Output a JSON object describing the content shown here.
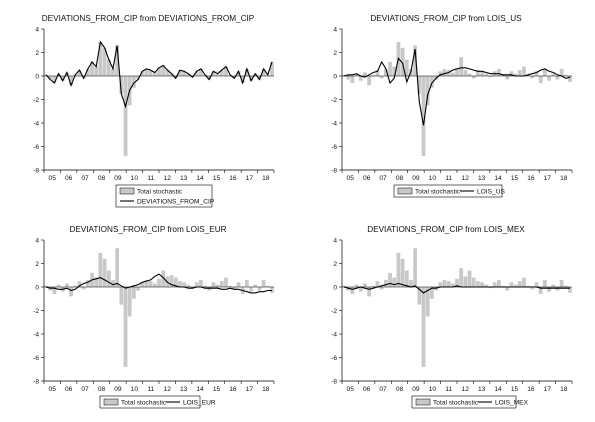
{
  "chart_data": [
    {
      "type": "area",
      "title": "DEVIATIONS_FROM_CIP from DEVIATIONS_FROM_CIP",
      "x_ticks": [
        "05",
        "06",
        "07",
        "08",
        "09",
        "10",
        "11",
        "12",
        "13",
        "14",
        "15",
        "16",
        "17",
        "18"
      ],
      "y_ticks": [
        "4",
        "2",
        "0",
        "-2",
        "-4",
        "-6",
        "-8"
      ],
      "ylim": [
        -8,
        4
      ],
      "legend_position": "bottom",
      "series": [
        {
          "name": "Total stochastic",
          "style": "gray area",
          "values": [
            0.1,
            -0.3,
            -0.6,
            0.2,
            -0.4,
            0.3,
            -0.8,
            0.1,
            0.5,
            -0.2,
            0.6,
            1.2,
            0.8,
            2.9,
            2.4,
            1.4,
            0.6,
            2.6,
            -1.5,
            -6.8,
            -2.5,
            -1.0,
            -0.3,
            0.4,
            0.6,
            0.5,
            0.3,
            0.7,
            0.9,
            0.5,
            0.2,
            -0.2,
            0.5,
            0.4,
            0.2,
            -0.1,
            0.4,
            0.6,
            0.1,
            -0.3,
            0.4,
            0.2,
            0.5,
            0.8,
            0.1,
            -0.2,
            0.4,
            -0.6,
            0.6,
            -0.4,
            0.2,
            -0.3,
            0.6,
            0.1,
            1.2
          ]
        },
        {
          "name": "DEVIATIONS_FROM_CIP",
          "style": "black line",
          "values": [
            0.1,
            -0.3,
            -0.6,
            0.2,
            -0.4,
            0.3,
            -0.8,
            0.1,
            0.5,
            -0.2,
            0.6,
            1.2,
            0.8,
            2.9,
            2.4,
            1.4,
            0.6,
            2.6,
            -1.5,
            -2.6,
            -1.2,
            -0.6,
            -0.3,
            0.4,
            0.6,
            0.5,
            0.3,
            0.7,
            0.9,
            0.5,
            0.2,
            -0.2,
            0.5,
            0.4,
            0.2,
            -0.1,
            0.4,
            0.6,
            0.1,
            -0.3,
            0.4,
            0.2,
            0.5,
            0.8,
            0.1,
            -0.2,
            0.4,
            -0.6,
            0.6,
            -0.4,
            0.2,
            -0.3,
            0.6,
            0.1,
            1.2
          ]
        }
      ]
    },
    {
      "type": "area",
      "title": "DEVIATIONS_FROM_CIP from LOIS_US",
      "x_ticks": [
        "05",
        "06",
        "07",
        "08",
        "09",
        "10",
        "11",
        "12",
        "13",
        "14",
        "15",
        "16",
        "17",
        "18"
      ],
      "y_ticks": [
        "4",
        "2",
        "0",
        "-2",
        "-4",
        "-6",
        "-8"
      ],
      "ylim": [
        -8,
        4
      ],
      "legend_position": "bottom",
      "series": [
        {
          "name": "Total stochastic",
          "style": "gray area",
          "values": [
            0.1,
            -0.3,
            -0.6,
            0.2,
            -0.4,
            0.3,
            -0.8,
            0.1,
            0.5,
            -0.2,
            0.6,
            1.2,
            0.8,
            2.9,
            2.4,
            1.4,
            0.6,
            2.6,
            -1.5,
            -6.8,
            -2.5,
            -1.0,
            -0.3,
            0.4,
            0.6,
            0.5,
            0.3,
            0.7,
            1.6,
            0.5,
            0.2,
            -0.2,
            0.5,
            0.4,
            0.2,
            -0.1,
            0.4,
            0.6,
            0.1,
            -0.3,
            0.4,
            0.2,
            0.5,
            0.8,
            0.1,
            -0.2,
            0.4,
            -0.6,
            0.6,
            -0.4,
            0.2,
            -0.3,
            0.6,
            0.1,
            -0.5
          ]
        },
        {
          "name": "LOIS_US",
          "style": "black line",
          "values": [
            0.0,
            0.1,
            0.1,
            0.2,
            0.0,
            -0.1,
            0.1,
            0.3,
            0.4,
            1.2,
            0.6,
            -0.6,
            -0.2,
            1.5,
            1.1,
            -0.5,
            0.4,
            2.3,
            -2.2,
            -4.2,
            -1.6,
            -0.6,
            -0.2,
            0.1,
            0.2,
            0.3,
            0.5,
            0.6,
            0.7,
            0.7,
            0.6,
            0.5,
            0.4,
            0.4,
            0.3,
            0.2,
            0.2,
            0.2,
            0.1,
            0.1,
            0.1,
            0.0,
            0.0,
            0.0,
            0.1,
            0.2,
            0.3,
            0.5,
            0.6,
            0.4,
            0.3,
            0.1,
            0.0,
            -0.2,
            -0.1
          ]
        }
      ]
    },
    {
      "type": "area",
      "title": "DEVIATIONS_FROM_CIP from LOIS_EUR",
      "x_ticks": [
        "05",
        "06",
        "07",
        "08",
        "09",
        "10",
        "11",
        "12",
        "13",
        "14",
        "15",
        "16",
        "17",
        "18"
      ],
      "y_ticks": [
        "4",
        "2",
        "0",
        "-2",
        "-4",
        "-6",
        "-8"
      ],
      "ylim": [
        -8,
        4
      ],
      "legend_position": "bottom",
      "series": [
        {
          "name": "Total stochastic",
          "style": "gray area",
          "values": [
            0.1,
            -0.3,
            -0.6,
            0.2,
            -0.4,
            0.3,
            -0.8,
            0.1,
            0.5,
            -0.2,
            0.6,
            1.2,
            0.8,
            2.9,
            2.4,
            1.4,
            0.6,
            3.3,
            -1.5,
            -6.8,
            -2.5,
            -1.0,
            -0.3,
            0.4,
            0.6,
            0.5,
            0.3,
            0.7,
            1.4,
            0.9,
            1.0,
            0.8,
            0.5,
            0.4,
            0.2,
            -0.1,
            0.4,
            0.6,
            0.1,
            -0.3,
            0.4,
            0.2,
            0.5,
            0.8,
            0.1,
            -0.2,
            0.4,
            -0.6,
            0.6,
            -0.4,
            0.2,
            -0.3,
            0.6,
            0.1,
            -0.5
          ]
        },
        {
          "name": "LOIS_EUR",
          "style": "black line",
          "values": [
            0.0,
            -0.1,
            -0.1,
            -0.2,
            -0.2,
            -0.1,
            -0.3,
            -0.2,
            0.1,
            0.3,
            0.4,
            0.6,
            0.7,
            0.8,
            0.6,
            0.4,
            0.2,
            0.3,
            0.1,
            -0.1,
            0.0,
            0.1,
            0.2,
            0.4,
            0.5,
            0.6,
            0.9,
            1.1,
            0.8,
            0.4,
            0.2,
            0.1,
            0.0,
            0.0,
            -0.1,
            -0.1,
            0.0,
            0.0,
            -0.1,
            -0.1,
            -0.1,
            -0.1,
            -0.2,
            -0.2,
            -0.1,
            -0.2,
            -0.2,
            -0.3,
            -0.4,
            -0.5,
            -0.5,
            -0.4,
            -0.4,
            -0.3,
            -0.3
          ]
        }
      ]
    },
    {
      "type": "area",
      "title": "DEVIATIONS_FROM_CIP from LOIS_MEX",
      "x_ticks": [
        "05",
        "06",
        "07",
        "08",
        "09",
        "10",
        "11",
        "12",
        "13",
        "14",
        "15",
        "16",
        "17",
        "18"
      ],
      "y_ticks": [
        "4",
        "2",
        "0",
        "-2",
        "-4",
        "-6",
        "-8"
      ],
      "ylim": [
        -8,
        4
      ],
      "legend_position": "bottom",
      "series": [
        {
          "name": "Total stochastic",
          "style": "gray area",
          "values": [
            0.1,
            -0.3,
            -0.6,
            0.2,
            -0.4,
            0.3,
            -0.8,
            0.1,
            0.5,
            -0.2,
            0.6,
            1.2,
            0.8,
            2.9,
            2.4,
            1.4,
            0.6,
            3.3,
            -1.5,
            -6.8,
            -2.5,
            -1.0,
            -0.3,
            0.4,
            0.6,
            0.5,
            0.3,
            0.7,
            1.6,
            0.9,
            1.4,
            0.8,
            0.5,
            0.4,
            0.2,
            -0.1,
            0.4,
            0.6,
            0.1,
            -0.3,
            0.4,
            0.2,
            0.5,
            0.8,
            0.1,
            -0.2,
            0.4,
            -0.6,
            0.6,
            -0.4,
            0.2,
            -0.3,
            0.6,
            0.1,
            -0.5
          ]
        },
        {
          "name": "LOIS_MEX",
          "style": "black line",
          "values": [
            0.0,
            -0.1,
            -0.2,
            -0.1,
            0.0,
            -0.1,
            -0.2,
            -0.1,
            0.0,
            0.1,
            0.2,
            0.3,
            0.2,
            0.3,
            0.2,
            0.1,
            0.0,
            0.1,
            -0.2,
            -0.5,
            -0.3,
            -0.1,
            -0.1,
            0.0,
            0.0,
            0.0,
            0.0,
            0.1,
            0.0,
            0.0,
            0.0,
            0.0,
            0.0,
            0.0,
            0.0,
            0.0,
            0.0,
            0.0,
            0.0,
            0.0,
            0.0,
            0.0,
            0.0,
            0.0,
            0.0,
            0.0,
            0.0,
            -0.1,
            -0.1,
            -0.1,
            -0.1,
            -0.1,
            -0.1,
            -0.1,
            -0.1
          ]
        }
      ]
    }
  ],
  "colors": {
    "area_fill": "#c8c8c8",
    "line": "#000000",
    "axis": "#000000"
  }
}
